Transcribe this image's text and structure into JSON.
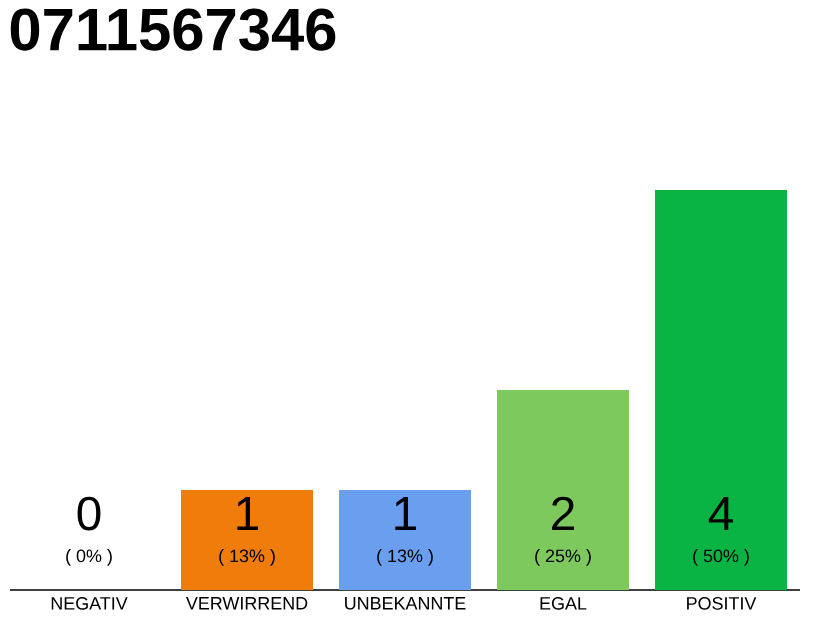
{
  "chart_data": {
    "type": "bar",
    "title": "0711567346",
    "categories": [
      "NEGATIV",
      "VERWIRREND",
      "UNBEKANNTE",
      "EGAL",
      "POSITIV"
    ],
    "values": [
      0,
      1,
      1,
      2,
      4
    ],
    "colors": [
      "#999999",
      "#f07c0c",
      "#6a9ff0",
      "#7dc95e",
      "#0ab444"
    ],
    "ylim": [
      0,
      4
    ],
    "data_labels": true,
    "annotations": [
      "( 0% )",
      "( 13% )",
      "( 13% )",
      "( 25% )",
      "( 50% )"
    ]
  }
}
